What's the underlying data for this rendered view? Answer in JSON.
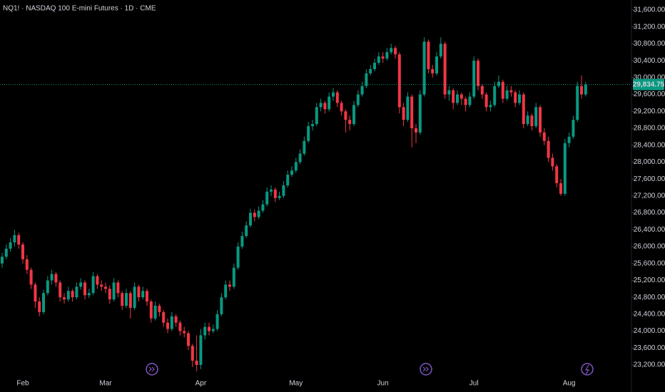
{
  "chart_data": {
    "type": "candlestick",
    "title": "NQ1! · NASDAQ 100 E-mini Futures · 1D · CME",
    "up_color": "#089981",
    "down_color": "#f23645",
    "ylim": [
      22896,
      31836
    ],
    "yticks": [
      {
        "value": 23200,
        "label": "23,200.00"
      },
      {
        "value": 23600,
        "label": "23,600.00"
      },
      {
        "value": 24000,
        "label": "24,000.00"
      },
      {
        "value": 24400,
        "label": "24,400.00"
      },
      {
        "value": 24800,
        "label": "24,800.00"
      },
      {
        "value": 25200,
        "label": "25,200.00"
      },
      {
        "value": 25600,
        "label": "25,600.00"
      },
      {
        "value": 26000,
        "label": "26,000.00"
      },
      {
        "value": 26400,
        "label": "26,400.00"
      },
      {
        "value": 26800,
        "label": "26,800.00"
      },
      {
        "value": 27200,
        "label": "27,200.00"
      },
      {
        "value": 27600,
        "label": "27,600.00"
      },
      {
        "value": 28000,
        "label": "28,000.00"
      },
      {
        "value": 28400,
        "label": "28,400.00"
      },
      {
        "value": 28800,
        "label": "28,800.00"
      },
      {
        "value": 29200,
        "label": "29,200.00"
      },
      {
        "value": 29600,
        "label": "29,600.00"
      },
      {
        "value": 30000,
        "label": "30,000.00"
      },
      {
        "value": 30400,
        "label": "30,400.00"
      },
      {
        "value": 30800,
        "label": "30,800.00"
      },
      {
        "value": 31200,
        "label": "31,200.00"
      },
      {
        "value": 31600,
        "label": "31,600.00"
      }
    ],
    "last_price": {
      "value": 29834.75,
      "label": "29,834.75"
    },
    "categories": [
      null,
      null,
      null,
      null,
      null,
      "Feb",
      null,
      null,
      null,
      null,
      null,
      null,
      null,
      null,
      null,
      null,
      null,
      null,
      null,
      null,
      null,
      null,
      null,
      null,
      null,
      "Mar",
      null,
      null,
      null,
      null,
      null,
      null,
      null,
      null,
      null,
      null,
      null,
      null,
      null,
      null,
      null,
      null,
      null,
      null,
      null,
      null,
      null,
      null,
      "Apr",
      null,
      null,
      null,
      null,
      null,
      null,
      null,
      null,
      null,
      null,
      null,
      null,
      null,
      null,
      null,
      null,
      null,
      null,
      null,
      null,
      null,
      null,
      "May",
      null,
      null,
      null,
      null,
      null,
      null,
      null,
      null,
      null,
      null,
      null,
      null,
      null,
      null,
      null,
      null,
      null,
      null,
      null,
      null,
      "Jun",
      null,
      null,
      null,
      null,
      null,
      null,
      null,
      null,
      null,
      null,
      null,
      null,
      null,
      null,
      null,
      null,
      null,
      null,
      null,
      null,
      null,
      "Jul",
      null,
      null,
      null,
      null,
      null,
      null,
      null,
      null,
      null,
      null,
      null,
      null,
      null,
      null,
      null,
      null,
      null,
      null,
      null,
      null,
      null,
      null,
      "Aug",
      null,
      null,
      null,
      null
    ],
    "open": [
      25600,
      25760,
      25950,
      26100,
      26270,
      26050,
      25700,
      25450,
      25100,
      24700,
      24450,
      24900,
      25200,
      25350,
      25150,
      24800,
      24750,
      24950,
      24800,
      25050,
      25150,
      24850,
      24900,
      25300,
      25100,
      25050,
      25000,
      24750,
      25150,
      24900,
      24600,
      24900,
      24550,
      25050,
      24800,
      24950,
      24700,
      24300,
      24600,
      24450,
      24200,
      24050,
      24350,
      24200,
      24000,
      23950,
      23650,
      23300,
      23200,
      23900,
      24100,
      24000,
      24050,
      24400,
      24800,
      25100,
      25050,
      25500,
      26000,
      26250,
      26500,
      26800,
      26700,
      26850,
      27000,
      27300,
      27350,
      27150,
      27200,
      27450,
      27700,
      27800,
      28000,
      28200,
      28500,
      28850,
      28900,
      29300,
      29400,
      29250,
      29550,
      29650,
      29400,
      29200,
      29000,
      28900,
      29350,
      29600,
      29800,
      30100,
      30200,
      30350,
      30500,
      30450,
      30600,
      30700,
      30550,
      29300,
      29000,
      29550,
      28800,
      28700,
      29600,
      30850,
      30200,
      30100,
      30500,
      30800,
      29600,
      29700,
      29400,
      29600,
      29500,
      29350,
      29550,
      30400,
      29800,
      29600,
      29300,
      29350,
      29800,
      29900,
      29500,
      29700,
      29650,
      29400,
      29600,
      28900,
      29100,
      28850,
      29300,
      28700,
      28500,
      28100,
      27900,
      27500,
      27250,
      28450,
      28600,
      29000,
      29800,
      29600
    ],
    "high": [
      25850,
      26050,
      26200,
      26400,
      26330,
      26100,
      25800,
      25500,
      25150,
      24800,
      24980,
      25300,
      25450,
      25400,
      25200,
      24900,
      25050,
      25000,
      25150,
      25250,
      25200,
      25000,
      25400,
      25350,
      25200,
      25150,
      25080,
      25250,
      25200,
      24950,
      25000,
      24950,
      25150,
      25100,
      25050,
      25000,
      24750,
      24700,
      24650,
      24500,
      24300,
      24450,
      24400,
      24250,
      24100,
      24000,
      23700,
      23900,
      24050,
      24200,
      24200,
      24150,
      24500,
      24900,
      25200,
      25200,
      25600,
      26100,
      26350,
      26600,
      26900,
      26880,
      26950,
      27100,
      27400,
      27450,
      27400,
      27300,
      27550,
      27800,
      27900,
      28100,
      28300,
      28600,
      28950,
      29000,
      29400,
      29500,
      29450,
      29650,
      29750,
      29700,
      29450,
      29250,
      29100,
      29450,
      29700,
      29900,
      30200,
      30300,
      30450,
      30600,
      30600,
      30700,
      30800,
      30750,
      30600,
      29400,
      29650,
      29600,
      28900,
      29700,
      30950,
      30900,
      30300,
      30600,
      30950,
      30850,
      29800,
      29750,
      29700,
      29650,
      29550,
      29650,
      30500,
      30450,
      29850,
      29650,
      29450,
      29900,
      30050,
      29950,
      29800,
      29800,
      29700,
      29700,
      29650,
      29200,
      29150,
      29400,
      29350,
      28800,
      28600,
      28200,
      27950,
      27600,
      28550,
      28700,
      29100,
      29900,
      30050,
      29900
    ],
    "low": [
      25500,
      25700,
      25880,
      26000,
      25950,
      25600,
      25350,
      25000,
      24550,
      24350,
      24400,
      24850,
      25100,
      25050,
      24700,
      24650,
      24700,
      24700,
      24750,
      24980,
      24750,
      24780,
      24850,
      25000,
      24950,
      24900,
      24650,
      24700,
      24800,
      24500,
      24550,
      24300,
      24500,
      24700,
      24750,
      24600,
      24200,
      24250,
      24350,
      24100,
      23950,
      24000,
      24100,
      23900,
      23850,
      23550,
      23150,
      23050,
      23100,
      23800,
      23900,
      23950,
      24000,
      24350,
      24750,
      24950,
      25000,
      25450,
      25950,
      26200,
      26450,
      26600,
      26650,
      26800,
      26950,
      27200,
      27050,
      27100,
      27150,
      27400,
      27650,
      27750,
      27950,
      28150,
      28450,
      28750,
      28850,
      29200,
      29150,
      29200,
      29450,
      29300,
      29100,
      28700,
      28750,
      28850,
      29300,
      29550,
      29750,
      30050,
      30150,
      30300,
      30350,
      30400,
      30550,
      30450,
      29150,
      28850,
      28950,
      28350,
      28450,
      28650,
      29550,
      30100,
      30000,
      30050,
      30450,
      29500,
      29450,
      29250,
      29350,
      29350,
      29200,
      29300,
      29500,
      29700,
      29500,
      29200,
      29200,
      29300,
      29750,
      29400,
      29450,
      29550,
      29300,
      29350,
      28800,
      28850,
      28750,
      28800,
      28600,
      28400,
      28000,
      27800,
      27400,
      27200,
      27200,
      28350,
      28550,
      28950,
      29500,
      29550
    ],
    "close": [
      25760,
      25950,
      26100,
      26270,
      26050,
      25700,
      25450,
      25100,
      24700,
      24450,
      24900,
      25200,
      25350,
      25150,
      24800,
      24750,
      24950,
      24800,
      25050,
      25150,
      24850,
      24900,
      25300,
      25100,
      25050,
      25000,
      24750,
      25150,
      24900,
      24600,
      24900,
      24550,
      25050,
      24800,
      24950,
      24700,
      24300,
      24600,
      24450,
      24200,
      24050,
      24350,
      24200,
      24000,
      23950,
      23650,
      23300,
      23200,
      23900,
      24100,
      24000,
      24050,
      24400,
      24800,
      25100,
      25050,
      25500,
      26000,
      26250,
      26500,
      26800,
      26700,
      26850,
      27000,
      27300,
      27350,
      27150,
      27200,
      27450,
      27700,
      27800,
      28000,
      28200,
      28500,
      28850,
      28900,
      29300,
      29400,
      29250,
      29550,
      29650,
      29400,
      29200,
      29000,
      28900,
      29350,
      29600,
      29800,
      30100,
      30200,
      30350,
      30500,
      30450,
      30600,
      30700,
      30550,
      29300,
      29000,
      29550,
      28800,
      28700,
      29600,
      30850,
      30200,
      30100,
      30500,
      30800,
      29600,
      29700,
      29400,
      29600,
      29500,
      29350,
      29550,
      30400,
      29800,
      29600,
      29300,
      29350,
      29800,
      29900,
      29500,
      29700,
      29650,
      29400,
      29600,
      28900,
      29100,
      28850,
      29300,
      28700,
      28500,
      28100,
      27900,
      27500,
      27250,
      28450,
      28600,
      29000,
      29800,
      29600,
      29834.75
    ]
  }
}
